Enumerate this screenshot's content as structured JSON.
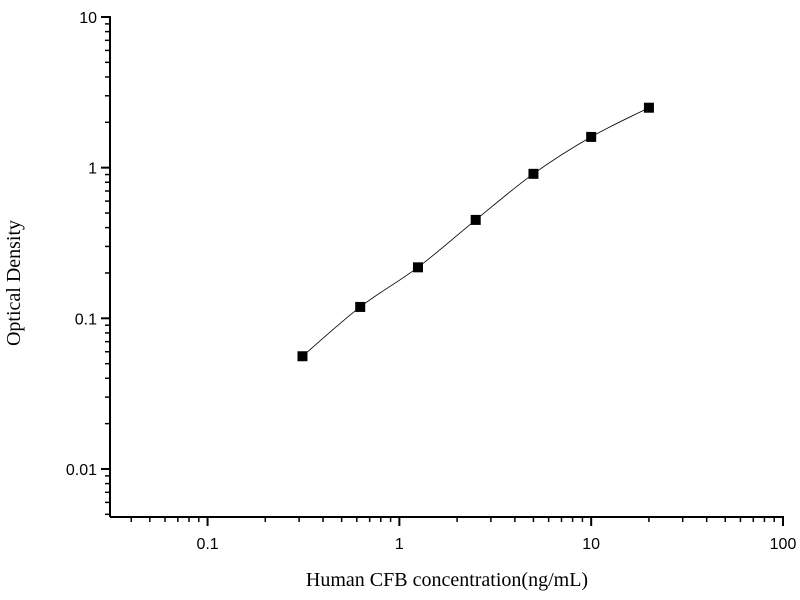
{
  "chart_data": {
    "type": "line",
    "title": "",
    "xlabel": "Human CFB concentration(ng/mL)",
    "ylabel": "Optical Density",
    "x_scale": "log",
    "y_scale": "log",
    "xlim": [
      0.031,
      100
    ],
    "ylim": [
      0.0048,
      10
    ],
    "x_ticks": [
      0.1,
      1,
      10,
      100
    ],
    "x_tick_labels": [
      "0.1",
      "1",
      "10",
      "100"
    ],
    "y_ticks": [
      0.01,
      0.1,
      1,
      10
    ],
    "y_tick_labels": [
      "0.01",
      "0.1",
      "1",
      "10"
    ],
    "grid": false,
    "legend": "none",
    "marker": "square",
    "color": "#000000",
    "series": [
      {
        "x": [
          0.3125,
          0.625,
          1.25,
          2.5,
          5,
          10,
          20
        ],
        "y": [
          0.056,
          0.119,
          0.218,
          0.45,
          0.91,
          1.6,
          2.5
        ]
      }
    ]
  }
}
